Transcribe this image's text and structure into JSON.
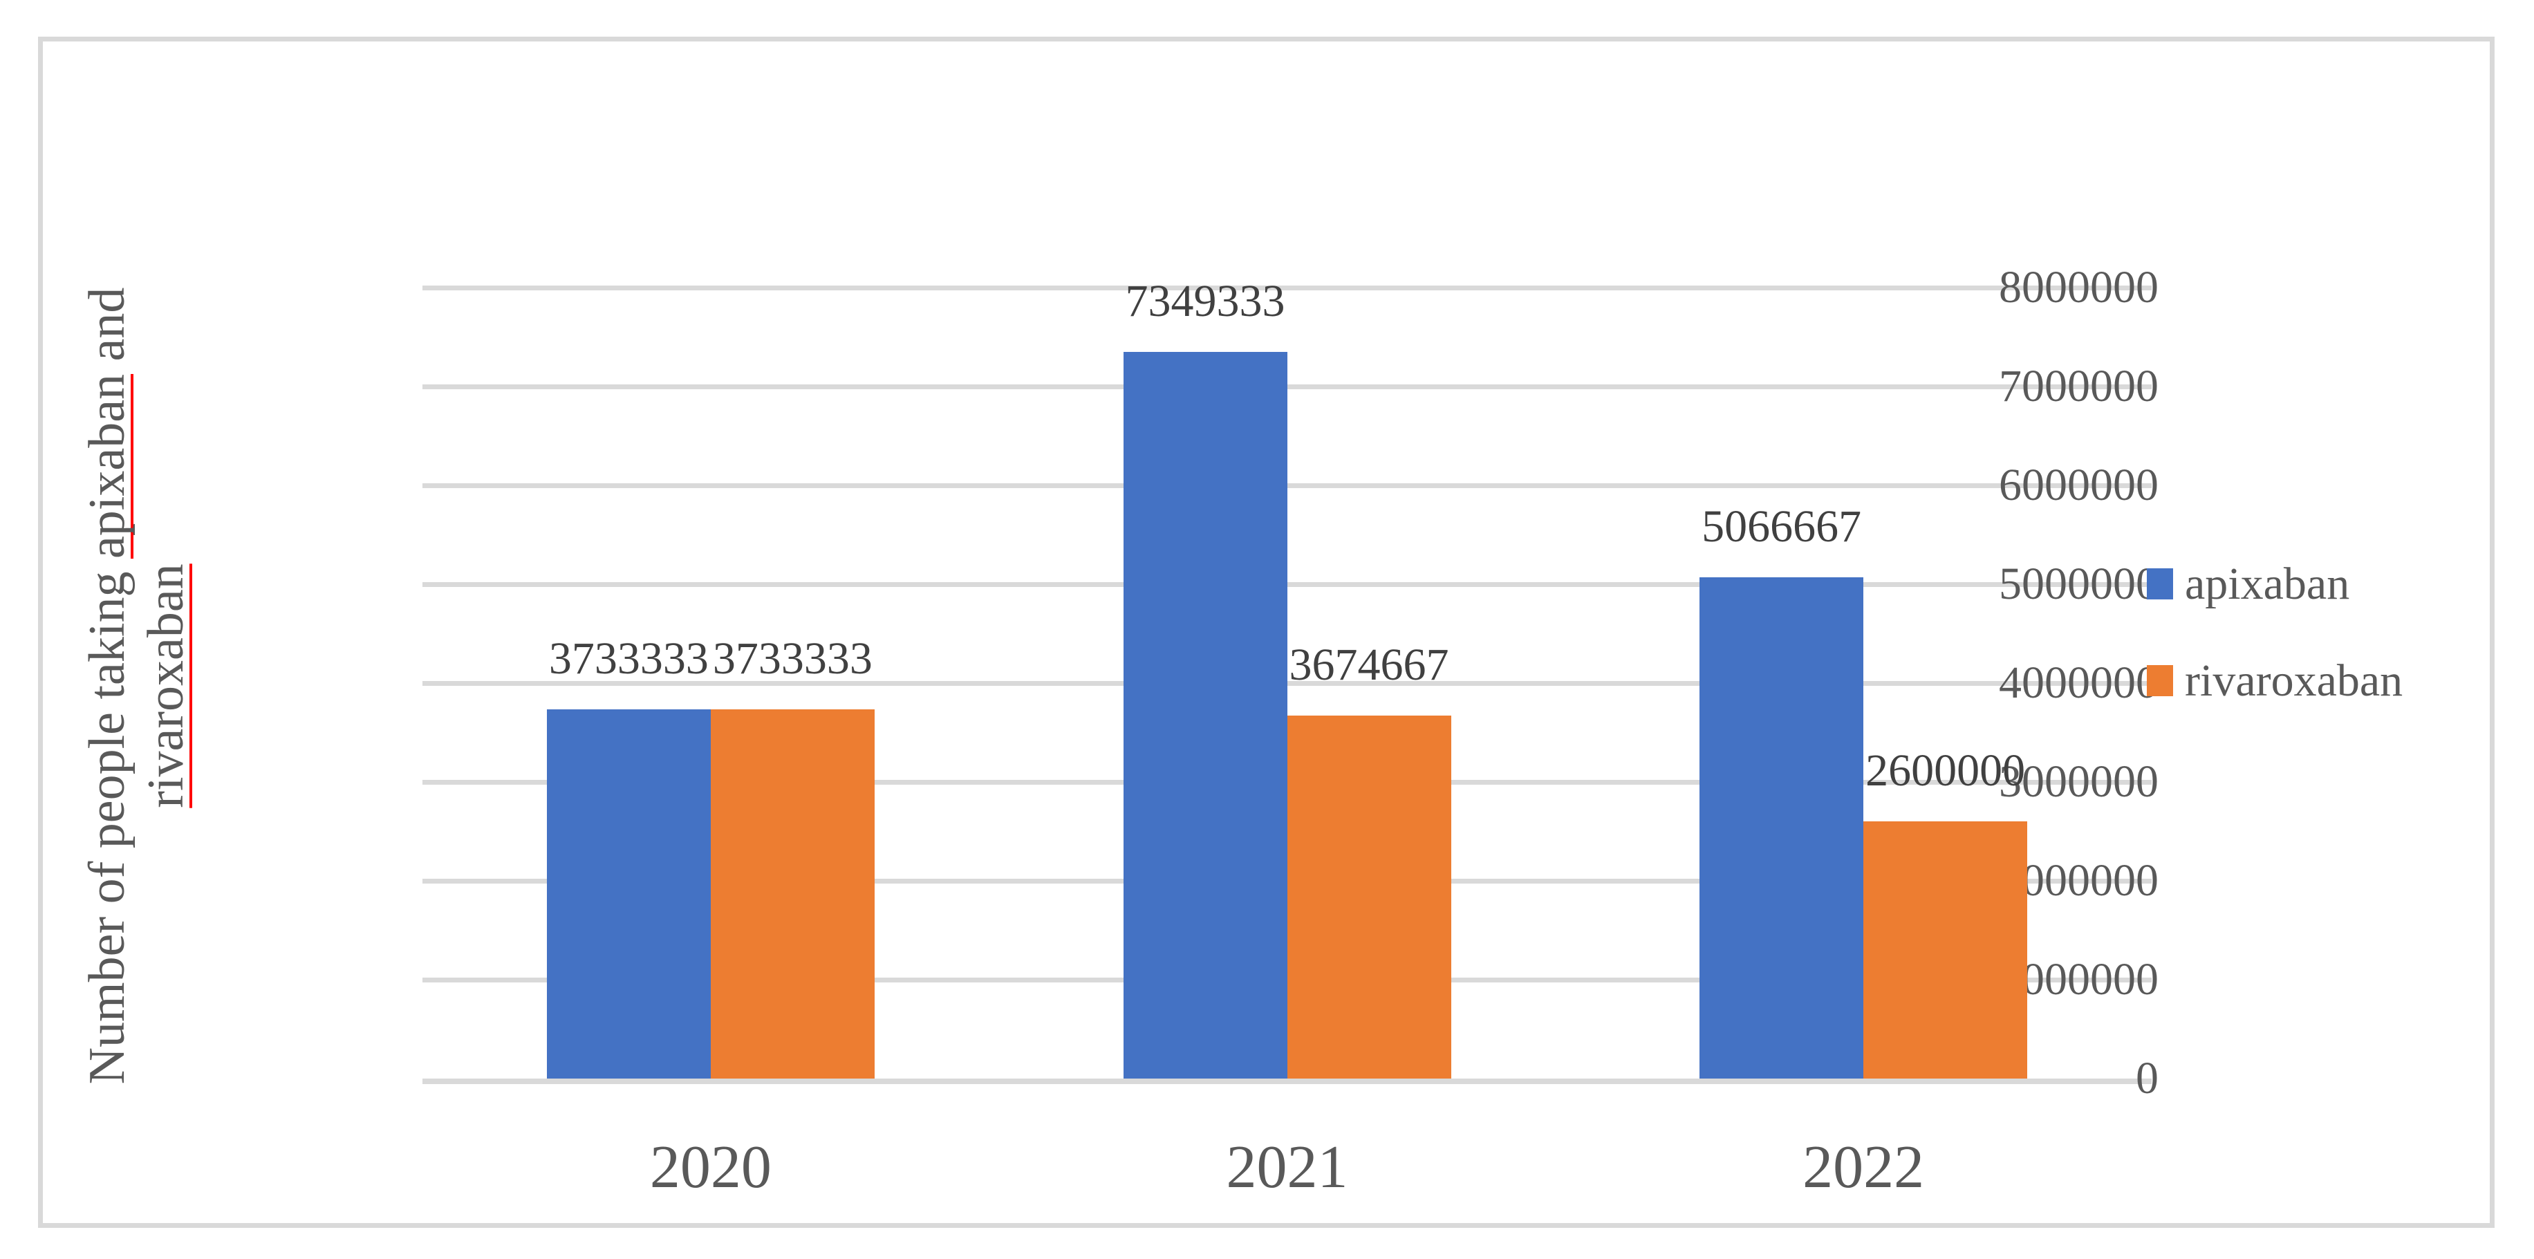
{
  "figure": {
    "background_color": "#FFFFFF",
    "border_color": "#D9D9D9"
  },
  "y_axis_title": {
    "line1_prefix": "Number of people taking ",
    "line1_word": "apixaban",
    "line1_suffix": " and",
    "line2_word": "rivaroxaban",
    "full_text": "Number of people taking apixaban and rivaroxaban",
    "text_color": "#595959",
    "spellcheck_underline_color": "#FF0000"
  },
  "chart_data": {
    "type": "bar",
    "title": "",
    "xlabel": "",
    "ylabel": "Number of people taking apixaban and rivaroxaban",
    "categories": [
      "2020",
      "2021",
      "2022"
    ],
    "series": [
      {
        "name": "apixaban",
        "color": "#4472C4",
        "values": [
          3733333,
          7349333,
          5066667
        ]
      },
      {
        "name": "rivaroxaban",
        "color": "#ED7D31",
        "values": [
          3733333,
          3674667,
          2600000
        ]
      }
    ],
    "data_labels_shown": true,
    "ylim": [
      0,
      8000000
    ],
    "ytick_step": 1000000,
    "yticks": [
      "0",
      "1000000",
      "2000000",
      "3000000",
      "4000000",
      "5000000",
      "6000000",
      "7000000",
      "8000000"
    ],
    "grid": "horizontal",
    "gridline_color": "#D9D9D9",
    "axis_line_color": "#D9D9D9",
    "tick_label_color": "#595959",
    "category_label_color": "#595959",
    "data_label_color": "#404040",
    "legend_position": "right",
    "legend_text_color": "#595959"
  }
}
